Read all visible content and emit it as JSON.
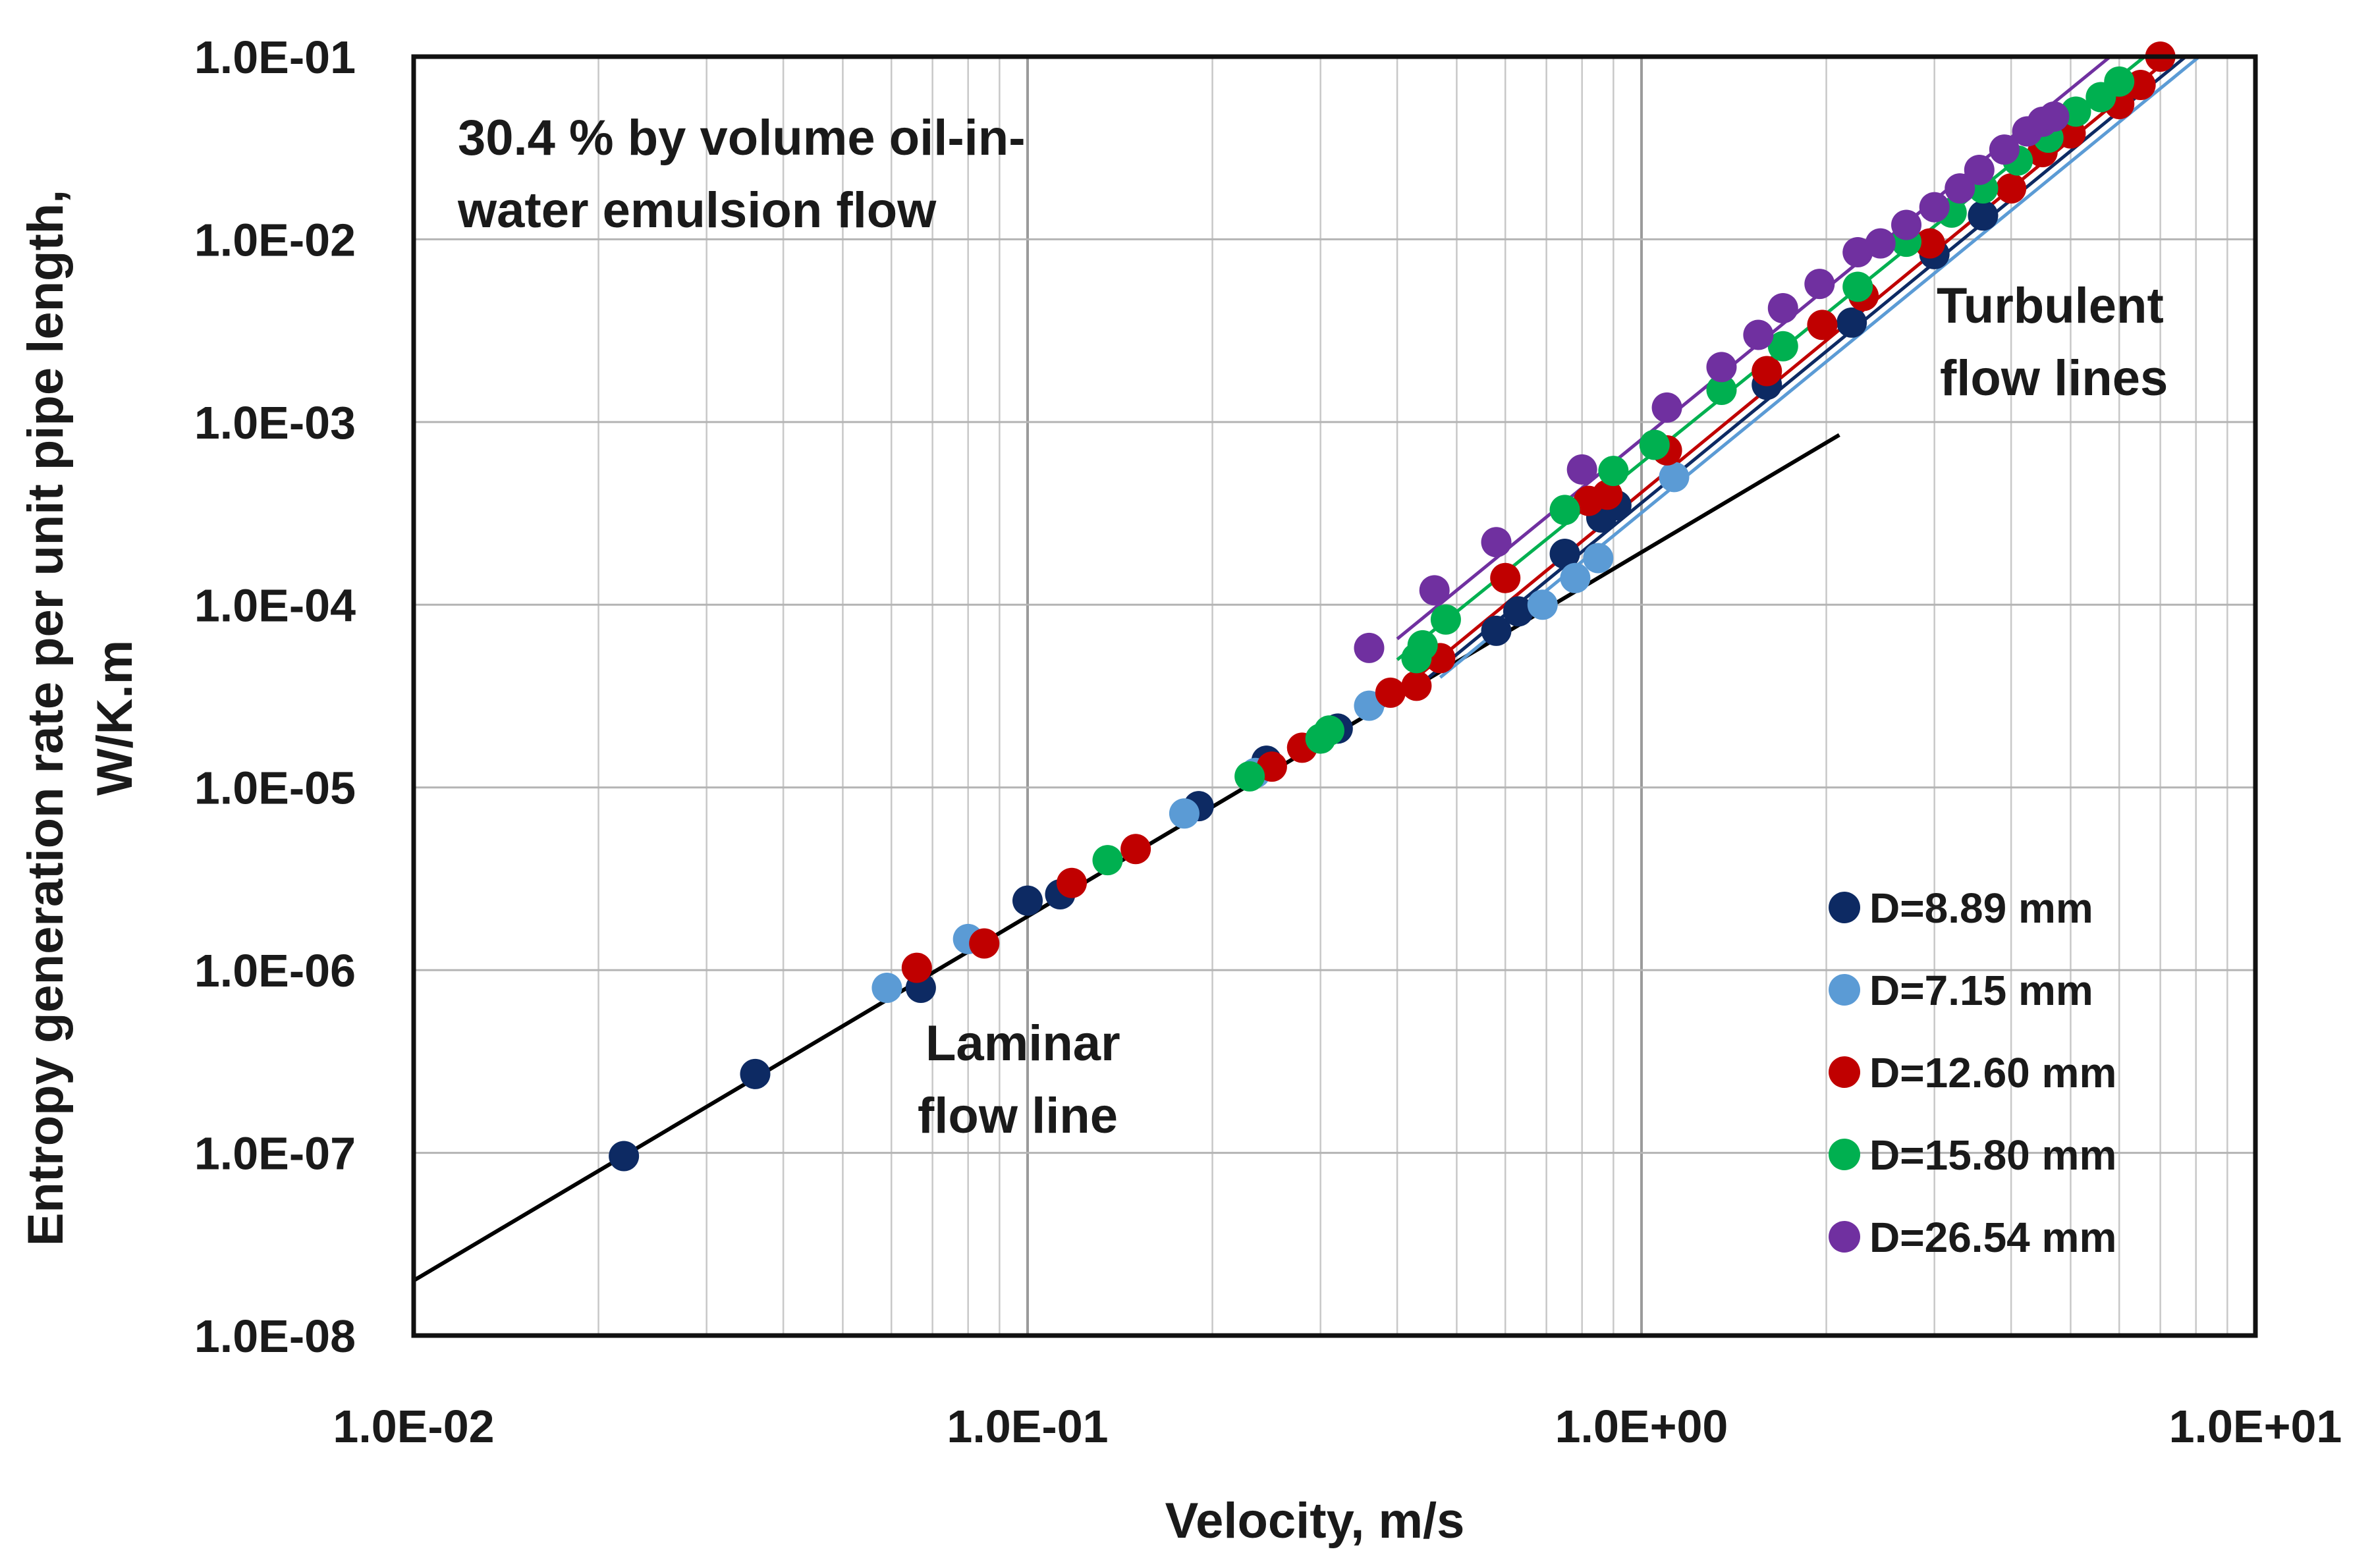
{
  "chart_data": {
    "type": "scatter",
    "xscale": "log",
    "yscale": "log",
    "xlim": [
      0.01,
      10
    ],
    "ylim": [
      1e-08,
      0.1
    ],
    "xlabel": "Velocity, m/s",
    "ylabel_line1": "Entropy generation rate per unit pipe length,",
    "ylabel_line2": "W/K.m",
    "x_tick_labels": [
      "1.0E-02",
      "1.0E-01",
      "1.0E+00",
      "1.0E+01"
    ],
    "y_tick_labels": [
      "1.0E-08",
      "1.0E-07",
      "1.0E-06",
      "1.0E-05",
      "1.0E-04",
      "1.0E-03",
      "1.0E-02",
      "1.0E-01"
    ],
    "grid": true,
    "legend_position": "bottom-right",
    "annotations": {
      "title_line1": "30.4 % by volume oil-in-",
      "title_line2": "water emulsion flow",
      "turbulent_line1": "Turbulent",
      "turbulent_line2": "flow lines",
      "laminar_line1": "Laminar",
      "laminar_line2": "flow line"
    },
    "laminar_line": {
      "color": "#000000",
      "points": [
        [
          0.01,
          2e-08
        ],
        [
          2.1,
          0.00085
        ]
      ]
    },
    "series": [
      {
        "name": "D=8.89 mm",
        "color": "#0d2a63",
        "points": [
          [
            0.022,
            9.6e-08
          ],
          [
            0.036,
            2.7e-07
          ],
          [
            0.067,
            8e-07
          ],
          [
            0.1,
            2.4e-06
          ],
          [
            0.113,
            2.6e-06
          ],
          [
            0.19,
            7.9e-06
          ],
          [
            0.245,
            1.4e-05
          ],
          [
            0.32,
            2.1e-05
          ],
          [
            0.58,
            7.2e-05
          ],
          [
            0.63,
            9.2e-05
          ],
          [
            0.75,
            0.00019
          ],
          [
            0.86,
            0.0003
          ],
          [
            0.91,
            0.00035
          ],
          [
            1.6,
            0.0016
          ],
          [
            2.2,
            0.0035
          ],
          [
            3.0,
            0.0083
          ],
          [
            3.6,
            0.0135
          ]
        ],
        "fit_line": [
          [
            0.45,
            4e-05
          ],
          [
            7.7,
            0.1
          ]
        ]
      },
      {
        "name": "D=7.15 mm",
        "color": "#5b9bd5",
        "points": [
          [
            0.059,
            8e-07
          ],
          [
            0.08,
            1.48e-06
          ],
          [
            0.18,
            7.2e-06
          ],
          [
            0.235,
            1.2e-05
          ],
          [
            0.36,
            2.8e-05
          ],
          [
            0.69,
            0.0001
          ],
          [
            0.78,
            0.00014
          ],
          [
            0.85,
            0.00018
          ],
          [
            1.13,
            0.0005
          ]
        ],
        "fit_line": [
          [
            0.47,
            4e-05
          ],
          [
            8.1,
            0.1
          ]
        ]
      },
      {
        "name": "D=12.60 mm",
        "color": "#c00000",
        "points": [
          [
            0.066,
            1.03e-06
          ],
          [
            0.085,
            1.4e-06
          ],
          [
            0.118,
            3e-06
          ],
          [
            0.15,
            4.6e-06
          ],
          [
            0.25,
            1.3e-05
          ],
          [
            0.28,
            1.65e-05
          ],
          [
            0.39,
            3.3e-05
          ],
          [
            0.43,
            3.6e-05
          ],
          [
            0.47,
            5.1e-05
          ],
          [
            0.6,
            0.00014
          ],
          [
            0.82,
            0.00037
          ],
          [
            0.88,
            0.0004
          ],
          [
            1.1,
            0.0007
          ],
          [
            1.6,
            0.0019
          ],
          [
            1.97,
            0.0034
          ],
          [
            2.3,
            0.0049
          ],
          [
            2.95,
            0.0095
          ],
          [
            4.0,
            0.019
          ],
          [
            4.5,
            0.03
          ],
          [
            5.0,
            0.038
          ],
          [
            6.0,
            0.055
          ],
          [
            6.5,
            0.07
          ],
          [
            7.0,
            0.1
          ]
        ],
        "fit_line": [
          [
            0.43,
            4e-05
          ],
          [
            7.3,
            0.1
          ]
        ]
      },
      {
        "name": "D=15.80 mm",
        "color": "#00b050",
        "points": [
          [
            0.135,
            4e-06
          ],
          [
            0.23,
            1.15e-05
          ],
          [
            0.3,
            1.85e-05
          ],
          [
            0.31,
            2.05e-05
          ],
          [
            0.43,
            5.1e-05
          ],
          [
            0.44,
            6e-05
          ],
          [
            0.48,
            8.3e-05
          ],
          [
            0.75,
            0.00033
          ],
          [
            0.9,
            0.00054
          ],
          [
            1.05,
            0.00075
          ],
          [
            1.35,
            0.0015
          ],
          [
            1.7,
            0.0026
          ],
          [
            2.25,
            0.0055
          ],
          [
            2.7,
            0.0097
          ],
          [
            3.2,
            0.014
          ],
          [
            3.6,
            0.019
          ],
          [
            4.1,
            0.027
          ],
          [
            4.6,
            0.036
          ],
          [
            5.1,
            0.05
          ],
          [
            5.6,
            0.06
          ],
          [
            6.0,
            0.073
          ]
        ],
        "fit_line": [
          [
            0.4,
            5e-05
          ],
          [
            6.6,
            0.1
          ]
        ]
      },
      {
        "name": "D=26.54 mm",
        "color": "#7030a0",
        "points": [
          [
            0.36,
            5.8e-05
          ],
          [
            0.46,
            0.00012
          ],
          [
            0.58,
            0.00022
          ],
          [
            0.8,
            0.00055
          ],
          [
            1.1,
            0.0012
          ],
          [
            1.35,
            0.002
          ],
          [
            1.55,
            0.003
          ],
          [
            1.7,
            0.0042
          ],
          [
            1.95,
            0.0057
          ],
          [
            2.25,
            0.0085
          ],
          [
            2.45,
            0.0095
          ],
          [
            2.7,
            0.012
          ],
          [
            3.0,
            0.015
          ],
          [
            3.3,
            0.019
          ],
          [
            3.55,
            0.024
          ],
          [
            3.9,
            0.031
          ],
          [
            4.25,
            0.039
          ],
          [
            4.5,
            0.044
          ],
          [
            4.7,
            0.047
          ]
        ],
        "fit_line": [
          [
            0.4,
            6.5e-05
          ],
          [
            5.8,
            0.1
          ]
        ]
      }
    ]
  }
}
